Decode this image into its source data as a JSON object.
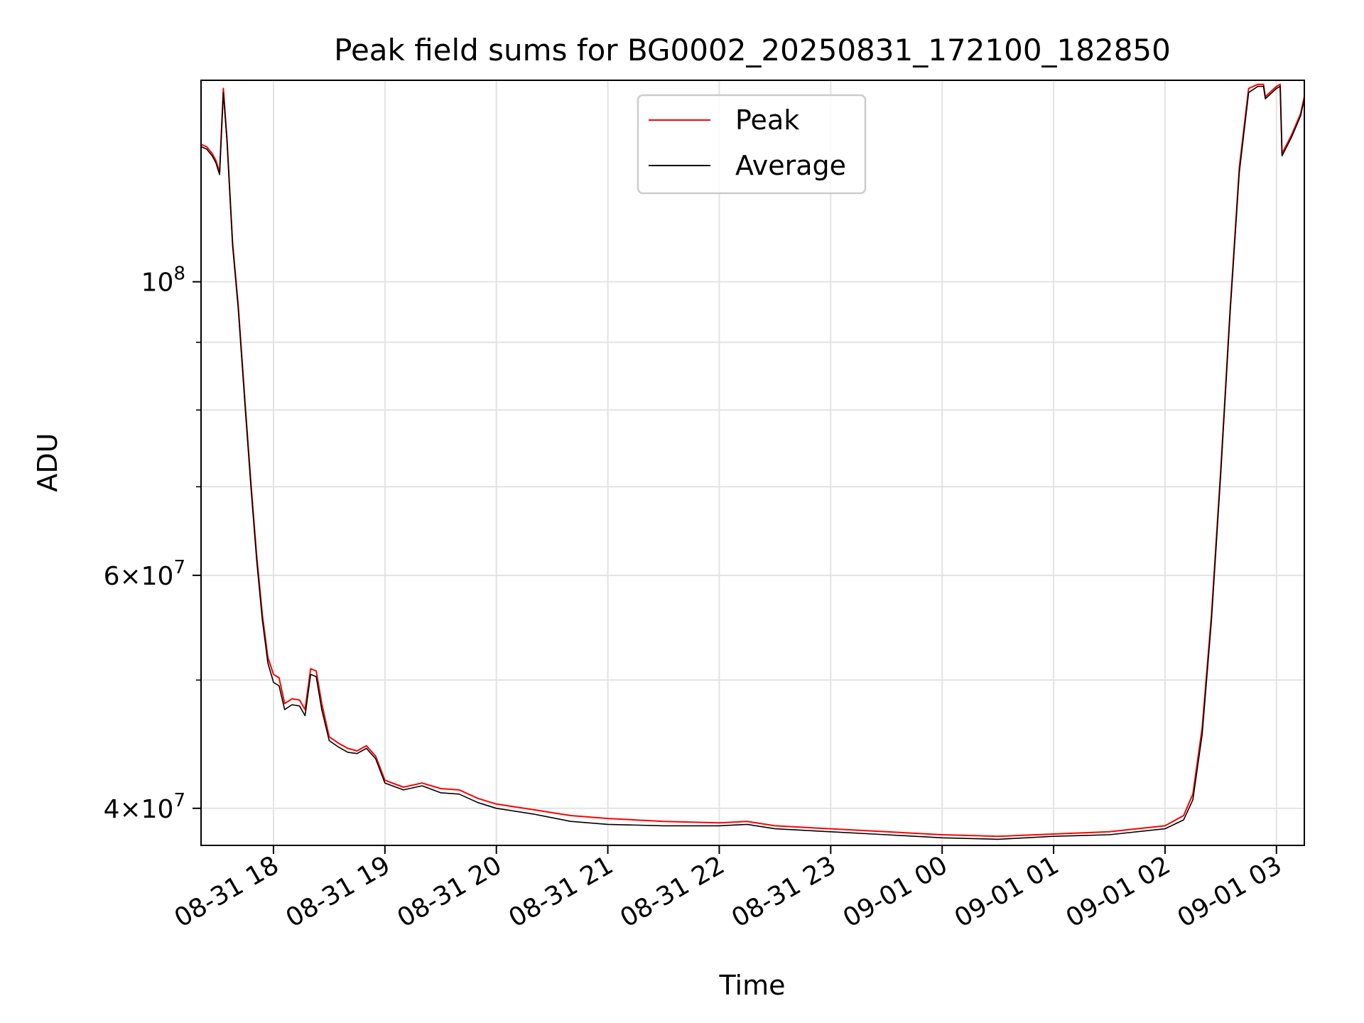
{
  "chart_data": {
    "type": "line",
    "title": "Peak field sums for BG0002_20250831_172100_182850",
    "xlabel": "Time",
    "ylabel": "ADU",
    "yscale": "log",
    "xlim": [
      "2025-08-31 17:21",
      "2025-09-01 03:15"
    ],
    "ylim": [
      37500000,
      142000000
    ],
    "grid": true,
    "legend_position": "top-center",
    "x_ticks": [
      {
        "time": "2025-08-31 18:00",
        "label": "08-31 18"
      },
      {
        "time": "2025-08-31 19:00",
        "label": "08-31 19"
      },
      {
        "time": "2025-08-31 20:00",
        "label": "08-31 20"
      },
      {
        "time": "2025-08-31 21:00",
        "label": "08-31 21"
      },
      {
        "time": "2025-08-31 22:00",
        "label": "08-31 22"
      },
      {
        "time": "2025-08-31 23:00",
        "label": "08-31 23"
      },
      {
        "time": "2025-09-01 00:00",
        "label": "09-01 00"
      },
      {
        "time": "2025-09-01 01:00",
        "label": "09-01 01"
      },
      {
        "time": "2025-09-01 02:00",
        "label": "09-01 02"
      },
      {
        "time": "2025-09-01 03:00",
        "label": "09-01 03"
      }
    ],
    "y_ticks": [
      {
        "value": 40000000,
        "base": "4",
        "exp": "7",
        "sci": true
      },
      {
        "value": 60000000,
        "base": "6",
        "exp": "7",
        "sci": true
      },
      {
        "value": 100000000,
        "base": "10",
        "exp": "8",
        "sci": false
      }
    ],
    "y_minor_ticks": [
      50000000,
      70000000,
      80000000,
      90000000
    ],
    "series": [
      {
        "name": "Peak",
        "color": "#ff0000",
        "points": [
          [
            "2025-08-31 17:21",
            127000000
          ],
          [
            "2025-08-31 17:24",
            126500000
          ],
          [
            "2025-08-31 17:27",
            125000000
          ],
          [
            "2025-08-31 17:29",
            123500000
          ],
          [
            "2025-08-31 17:31",
            121000000
          ],
          [
            "2025-08-31 17:33",
            140000000
          ],
          [
            "2025-08-31 17:35",
            128000000
          ],
          [
            "2025-08-31 17:38",
            107000000
          ],
          [
            "2025-08-31 17:41",
            96000000
          ],
          [
            "2025-08-31 17:45",
            80000000
          ],
          [
            "2025-08-31 17:48",
            70000000
          ],
          [
            "2025-08-31 17:51",
            62000000
          ],
          [
            "2025-08-31 17:54",
            56000000
          ],
          [
            "2025-08-31 17:57",
            52000000
          ],
          [
            "2025-08-31 18:00",
            50500000
          ],
          [
            "2025-08-31 18:03",
            50200000
          ],
          [
            "2025-08-31 18:06",
            48000000
          ],
          [
            "2025-08-31 18:10",
            48400000
          ],
          [
            "2025-08-31 18:14",
            48300000
          ],
          [
            "2025-08-31 18:17",
            47500000
          ],
          [
            "2025-08-31 18:20",
            51000000
          ],
          [
            "2025-08-31 18:23",
            50800000
          ],
          [
            "2025-08-31 18:26",
            48000000
          ],
          [
            "2025-08-31 18:30",
            45300000
          ],
          [
            "2025-08-31 18:35",
            44800000
          ],
          [
            "2025-08-31 18:40",
            44400000
          ],
          [
            "2025-08-31 18:45",
            44200000
          ],
          [
            "2025-08-31 18:50",
            44600000
          ],
          [
            "2025-08-31 18:55",
            43800000
          ],
          [
            "2025-08-31 19:00",
            42000000
          ],
          [
            "2025-08-31 19:10",
            41500000
          ],
          [
            "2025-08-31 19:20",
            41800000
          ],
          [
            "2025-08-31 19:30",
            41400000
          ],
          [
            "2025-08-31 19:40",
            41300000
          ],
          [
            "2025-08-31 19:50",
            40700000
          ],
          [
            "2025-08-31 20:00",
            40300000
          ],
          [
            "2025-08-31 20:20",
            39900000
          ],
          [
            "2025-08-31 20:40",
            39500000
          ],
          [
            "2025-08-31 21:00",
            39300000
          ],
          [
            "2025-08-31 21:30",
            39100000
          ],
          [
            "2025-08-31 22:00",
            39000000
          ],
          [
            "2025-08-31 22:15",
            39100000
          ],
          [
            "2025-08-31 22:30",
            38800000
          ],
          [
            "2025-08-31 23:00",
            38600000
          ],
          [
            "2025-08-31 23:30",
            38400000
          ],
          [
            "2025-09-01 00:00",
            38200000
          ],
          [
            "2025-09-01 00:30",
            38100000
          ],
          [
            "2025-09-01 01:00",
            38250000
          ],
          [
            "2025-09-01 01:30",
            38400000
          ],
          [
            "2025-09-01 02:00",
            38800000
          ],
          [
            "2025-09-01 02:10",
            39500000
          ],
          [
            "2025-09-01 02:15",
            41000000
          ],
          [
            "2025-09-01 02:20",
            46000000
          ],
          [
            "2025-09-01 02:25",
            56000000
          ],
          [
            "2025-09-01 02:30",
            72000000
          ],
          [
            "2025-09-01 02:35",
            95000000
          ],
          [
            "2025-09-01 02:40",
            122000000
          ],
          [
            "2025-09-01 02:45",
            140000000
          ],
          [
            "2025-09-01 02:50",
            141000000
          ],
          [
            "2025-09-01 02:53",
            141000000
          ],
          [
            "2025-09-01 02:54",
            138000000
          ],
          [
            "2025-09-01 03:00",
            140500000
          ],
          [
            "2025-09-01 03:02",
            141000000
          ],
          [
            "2025-09-01 03:03",
            125000000
          ],
          [
            "2025-09-01 03:08",
            129000000
          ],
          [
            "2025-09-01 03:13",
            134000000
          ],
          [
            "2025-09-01 03:15",
            138000000
          ]
        ]
      },
      {
        "name": "Average",
        "color": "#000000",
        "points": [
          [
            "2025-08-31 17:21",
            126500000
          ],
          [
            "2025-08-31 17:24",
            126000000
          ],
          [
            "2025-08-31 17:27",
            124500000
          ],
          [
            "2025-08-31 17:29",
            123000000
          ],
          [
            "2025-08-31 17:31",
            120500000
          ],
          [
            "2025-08-31 17:33",
            139000000
          ],
          [
            "2025-08-31 17:35",
            127500000
          ],
          [
            "2025-08-31 17:38",
            106500000
          ],
          [
            "2025-08-31 17:41",
            95500000
          ],
          [
            "2025-08-31 17:45",
            79500000
          ],
          [
            "2025-08-31 17:48",
            69500000
          ],
          [
            "2025-08-31 17:51",
            61500000
          ],
          [
            "2025-08-31 17:54",
            55500000
          ],
          [
            "2025-08-31 17:57",
            51500000
          ],
          [
            "2025-08-31 18:00",
            49800000
          ],
          [
            "2025-08-31 18:03",
            49500000
          ],
          [
            "2025-08-31 18:06",
            47500000
          ],
          [
            "2025-08-31 18:10",
            47900000
          ],
          [
            "2025-08-31 18:14",
            47800000
          ],
          [
            "2025-08-31 18:17",
            47000000
          ],
          [
            "2025-08-31 18:20",
            50500000
          ],
          [
            "2025-08-31 18:23",
            50300000
          ],
          [
            "2025-08-31 18:26",
            47500000
          ],
          [
            "2025-08-31 18:30",
            45000000
          ],
          [
            "2025-08-31 18:35",
            44500000
          ],
          [
            "2025-08-31 18:40",
            44100000
          ],
          [
            "2025-08-31 18:45",
            44000000
          ],
          [
            "2025-08-31 18:50",
            44400000
          ],
          [
            "2025-08-31 18:55",
            43600000
          ],
          [
            "2025-08-31 19:00",
            41800000
          ],
          [
            "2025-08-31 19:10",
            41300000
          ],
          [
            "2025-08-31 19:20",
            41600000
          ],
          [
            "2025-08-31 19:30",
            41100000
          ],
          [
            "2025-08-31 19:40",
            41000000
          ],
          [
            "2025-08-31 19:50",
            40400000
          ],
          [
            "2025-08-31 20:00",
            40000000
          ],
          [
            "2025-08-31 20:20",
            39600000
          ],
          [
            "2025-08-31 20:40",
            39100000
          ],
          [
            "2025-08-31 21:00",
            38900000
          ],
          [
            "2025-08-31 21:30",
            38800000
          ],
          [
            "2025-08-31 22:00",
            38800000
          ],
          [
            "2025-08-31 22:15",
            38900000
          ],
          [
            "2025-08-31 22:30",
            38600000
          ],
          [
            "2025-08-31 23:00",
            38400000
          ],
          [
            "2025-08-31 23:30",
            38200000
          ],
          [
            "2025-09-01 00:00",
            38000000
          ],
          [
            "2025-09-01 00:30",
            37900000
          ],
          [
            "2025-09-01 01:00",
            38100000
          ],
          [
            "2025-09-01 01:30",
            38200000
          ],
          [
            "2025-09-01 02:00",
            38600000
          ],
          [
            "2025-09-01 02:10",
            39200000
          ],
          [
            "2025-09-01 02:15",
            40600000
          ],
          [
            "2025-09-01 02:20",
            45500000
          ],
          [
            "2025-09-01 02:25",
            55500000
          ],
          [
            "2025-09-01 02:30",
            71500000
          ],
          [
            "2025-09-01 02:35",
            94500000
          ],
          [
            "2025-09-01 02:40",
            121000000
          ],
          [
            "2025-09-01 02:45",
            139000000
          ],
          [
            "2025-09-01 02:50",
            140500000
          ],
          [
            "2025-09-01 02:53",
            140500000
          ],
          [
            "2025-09-01 02:54",
            137500000
          ],
          [
            "2025-09-01 03:00",
            140000000
          ],
          [
            "2025-09-01 03:02",
            140500000
          ],
          [
            "2025-09-01 03:03",
            124500000
          ],
          [
            "2025-09-01 03:08",
            128500000
          ],
          [
            "2025-09-01 03:13",
            133500000
          ],
          [
            "2025-09-01 03:15",
            137500000
          ]
        ]
      }
    ]
  }
}
